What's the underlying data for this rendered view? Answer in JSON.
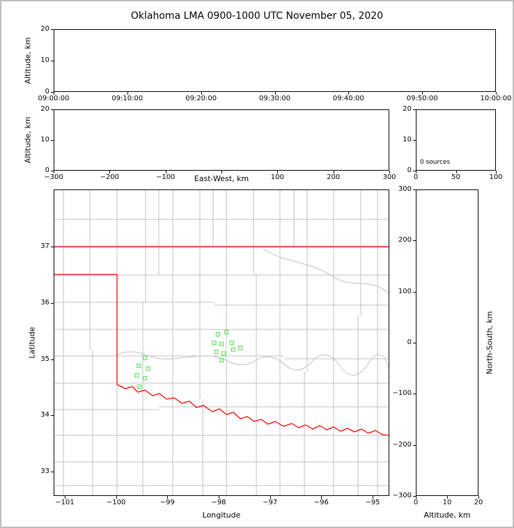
{
  "title": "Oklahoma LMA 0900-1000 UTC November 05, 2020",
  "panels": {
    "time_height": {
      "ylabel": "Altitude, km",
      "yticks": [
        "20",
        "10",
        "0"
      ],
      "xticks": [
        "09:00:00",
        "09:10:00",
        "09:20:00",
        "09:30:00",
        "09:40:00",
        "09:50:00",
        "10:00:00"
      ]
    },
    "ew_height": {
      "ylabel": "Altitude, km",
      "xlabel": "East-West, km",
      "yticks": [
        "20",
        "10",
        "0"
      ],
      "xticks": [
        "−300",
        "−200",
        "−100",
        "100",
        "200",
        "300"
      ]
    },
    "alt_histogram": {
      "yticks": [
        "20",
        "10",
        "0"
      ],
      "xticks": [
        "0",
        "50",
        "100"
      ],
      "annotation": "0 sources"
    },
    "map": {
      "ylabel": "Latitude",
      "xlabel": "Longitude",
      "yticks": [
        "37",
        "36",
        "35",
        "34",
        "33"
      ],
      "xticks": [
        "−101",
        "−100",
        "−99",
        "−98",
        "−97",
        "−96",
        "−95"
      ]
    },
    "ns_height": {
      "ylabel": "North-South, km",
      "xlabel": "Altitude, km",
      "yticks": [
        "300",
        "200",
        "100",
        "0",
        "−100",
        "−200",
        "−300"
      ],
      "xticks": [
        "0",
        "10",
        "20"
      ]
    }
  },
  "colors": {
    "state_boundary": "#ff0000",
    "county_lines": "#c0c0c0",
    "station_marker": "#5ce65c",
    "axis": "#000000",
    "figure_border": "#bdbdbd"
  },
  "chart_data": {
    "type": "scatter",
    "title": "Oklahoma LMA 0900-1000 UTC November 05, 2020",
    "date": "November 05, 2020",
    "time_range_utc": [
      "09:00:00",
      "10:00:00"
    ],
    "source_count": 0,
    "panels": [
      {
        "id": "time_height",
        "type": "scatter",
        "xlim": [
          "09:00:00",
          "10:00:00"
        ],
        "ylim": [
          0,
          20
        ],
        "ylabel": "Altitude, km",
        "points": []
      },
      {
        "id": "ew_height",
        "type": "scatter",
        "xlabel": "East-West, km",
        "ylabel": "Altitude, km",
        "xlim": [
          -300,
          300
        ],
        "ylim": [
          0,
          20
        ],
        "points": []
      },
      {
        "id": "alt_histogram",
        "type": "line",
        "xlim": [
          0,
          100
        ],
        "ylim": [
          0,
          20
        ],
        "annotation": "0 sources",
        "points": []
      },
      {
        "id": "plan_map",
        "type": "scatter",
        "xlabel": "Longitude",
        "ylabel": "Latitude",
        "xlim": [
          -101.2,
          -94.7
        ],
        "ylim": [
          32.6,
          38.0
        ],
        "stations_lon_lat": [
          [
            -99.45,
            35.02
          ],
          [
            -99.57,
            34.88
          ],
          [
            -99.39,
            34.83
          ],
          [
            -99.61,
            34.71
          ],
          [
            -99.45,
            34.66
          ],
          [
            -99.56,
            34.51
          ],
          [
            -98.03,
            35.44
          ],
          [
            -97.86,
            35.48
          ],
          [
            -98.1,
            35.29
          ],
          [
            -97.96,
            35.27
          ],
          [
            -97.76,
            35.29
          ],
          [
            -98.06,
            35.13
          ],
          [
            -97.92,
            35.1
          ],
          [
            -97.73,
            35.17
          ],
          [
            -97.59,
            35.2
          ],
          [
            -97.96,
            34.98
          ]
        ],
        "points": []
      },
      {
        "id": "ns_height",
        "type": "scatter",
        "xlabel": "Altitude, km",
        "ylabel": "North-South, km",
        "xlim": [
          0,
          20
        ],
        "ylim": [
          -300,
          300
        ],
        "points": []
      }
    ]
  }
}
